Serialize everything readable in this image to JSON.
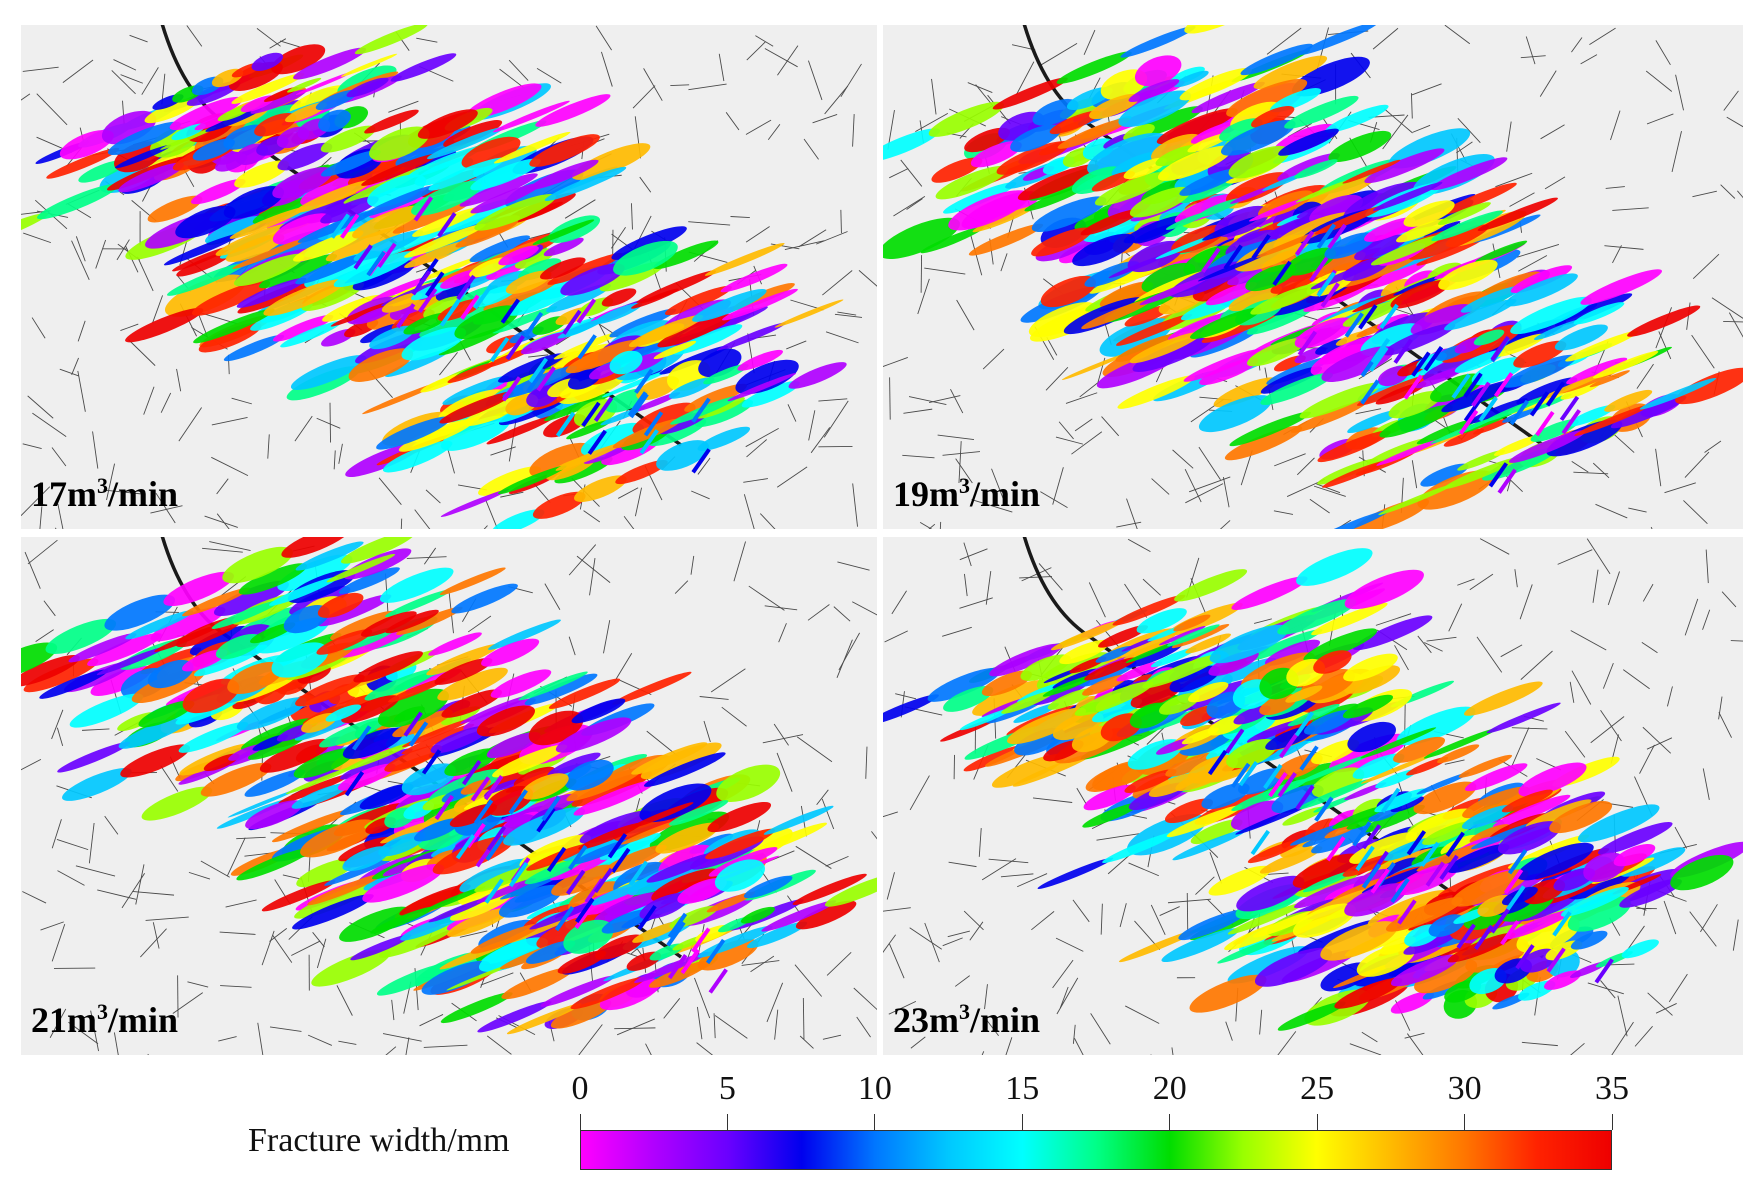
{
  "panels": [
    {
      "label_value": "17",
      "label_unit_a": "m",
      "label_unit_sup": "3",
      "label_unit_b": "/min",
      "seed": 17
    },
    {
      "label_value": "19",
      "label_unit_a": "m",
      "label_unit_sup": "3",
      "label_unit_b": "/min",
      "seed": 19
    },
    {
      "label_value": "21",
      "label_unit_a": "m",
      "label_unit_sup": "3",
      "label_unit_b": "/min",
      "seed": 21
    },
    {
      "label_value": "23",
      "label_unit_a": "m",
      "label_unit_sup": "3",
      "label_unit_b": "/min",
      "seed": 23
    }
  ],
  "colorbar": {
    "title": "Fracture width/mm",
    "min": 0,
    "max": 35,
    "ticks": [
      "0",
      "5",
      "10",
      "15",
      "20",
      "25",
      "30",
      "35"
    ],
    "colors": [
      "#ff00ff",
      "#b000ff",
      "#6a00ff",
      "#0000ee",
      "#0077ff",
      "#00c8ff",
      "#00ffff",
      "#00ff88",
      "#00dd00",
      "#99ff00",
      "#ffff00",
      "#ffbb00",
      "#ff7700",
      "#ff2200",
      "#ee0000"
    ]
  }
}
